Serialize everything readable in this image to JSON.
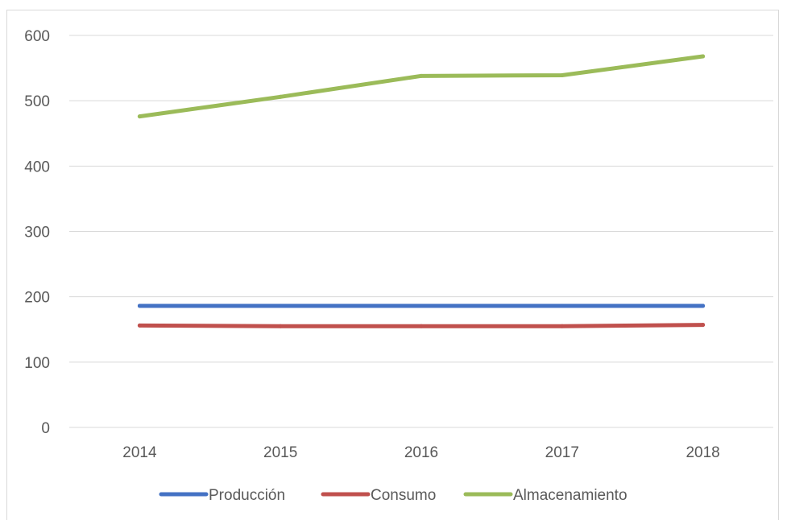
{
  "chart_data": {
    "type": "line",
    "title": "",
    "xlabel": "",
    "ylabel": "",
    "categories": [
      "2014",
      "2015",
      "2016",
      "2017",
      "2018"
    ],
    "ylim": [
      0,
      600
    ],
    "yticks": [
      "0",
      "100",
      "200",
      "300",
      "400",
      "500",
      "600"
    ],
    "grid": true,
    "legend_position": "bottom",
    "series": [
      {
        "name": "Producción",
        "color": "#4472c4",
        "values": [
          186,
          186,
          186,
          186,
          186
        ]
      },
      {
        "name": "Consumo",
        "color": "#c0504d",
        "values": [
          156,
          155,
          155,
          155,
          157
        ]
      },
      {
        "name": "Almacenamiento",
        "color": "#9bbb59",
        "values": [
          476,
          506,
          538,
          539,
          568
        ]
      }
    ]
  }
}
